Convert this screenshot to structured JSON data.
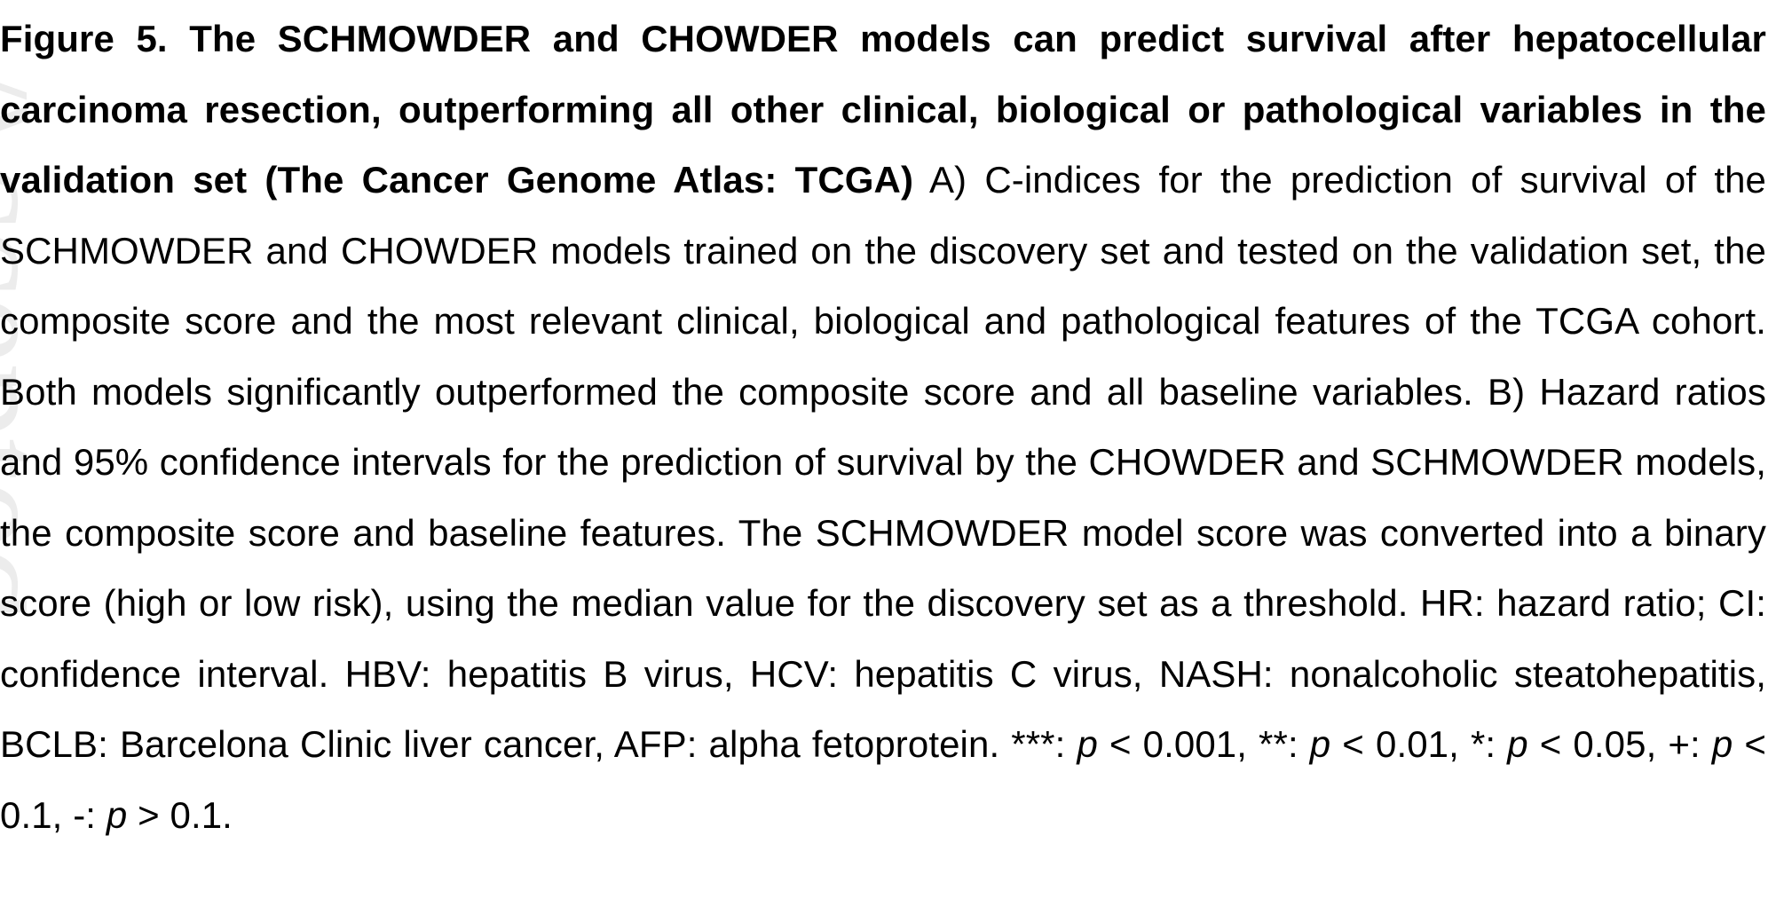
{
  "figure": {
    "title": "Figure 5. The SCHMOWDER and CHOWDER models can predict survival after hepatocellular carcinoma resection, outperforming all other clinical, biological or pathological variables in the validation set (The Cancer Genome Atlas: TCGA)",
    "body": " A) C-indices for the prediction of survival of the SCHMOWDER and CHOWDER models trained on the discovery set and tested on the validation set, the composite score and the most relevant clinical, biological and pathological features of the TCGA cohort. Both models significantly outperformed the composite score and all baseline variables. B) Hazard ratios and 95% confidence intervals for the prediction of survival by the CHOWDER and SCHMOWDER models, the composite score and baseline features. The SCHMOWDER model score was converted into a binary score (high or low risk), using the median value for the discovery set as a threshold. HR: hazard ratio; CI: confidence interval. HBV: hepatitis B virus, HCV: hepatitis C virus, NASH: nonalcoholic steatohepatitis, BCLB: Barcelona Clinic liver cancer, AFP: alpha fetoprotein.  ***: ",
    "p1": "p",
    "t1": " < 0.001, **: ",
    "p2": "p",
    "t2": " < 0.01, *: ",
    "p3": "p",
    "t3": " < 0.05, +: ",
    "p4": "p",
    "t4": " < 0.1, -: ",
    "p5": "p",
    "t5": " > 0.1."
  },
  "watermark_text": "Accepted"
}
